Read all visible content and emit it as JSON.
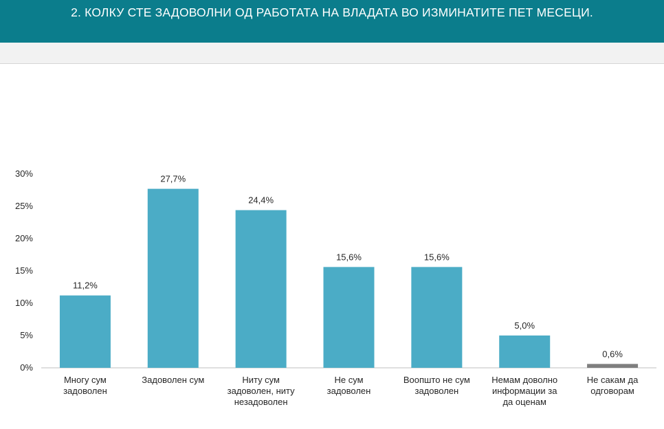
{
  "header": {
    "title": "2. КОЛКУ СТЕ ЗАДОВОЛНИ ОД РАБОТАТА НА ВЛАДАТА ВО ИЗМИНАТИТЕ ПЕТ МЕСЕЦИ."
  },
  "colors": {
    "header_bg": "#0b7d8c",
    "bar": "#4bacc6",
    "bar_refuse": "#7f7f7f"
  },
  "chart_data": {
    "type": "bar",
    "title": "",
    "xlabel": "",
    "ylabel": "",
    "ylim": [
      0,
      30
    ],
    "yticks": [
      "0%",
      "5%",
      "10%",
      "15%",
      "20%",
      "25%",
      "30%"
    ],
    "grid": false,
    "legend": "none",
    "categories": [
      [
        "Многу сум",
        "задоволен"
      ],
      [
        "Задоволен сум"
      ],
      [
        "Ниту сум",
        "задоволен, ниту",
        "незадоволен"
      ],
      [
        "Не сум",
        "задоволен"
      ],
      [
        "Воопшто не сум",
        "задоволен"
      ],
      [
        "Немам доволно",
        "информации за",
        "да оценам"
      ],
      [
        "Не сакам да",
        "одговорам"
      ]
    ],
    "values": [
      11.2,
      27.7,
      24.4,
      15.6,
      15.6,
      5.0,
      0.6
    ],
    "data_labels": [
      "11,2%",
      "27,7%",
      "24,4%",
      "15,6%",
      "15,6%",
      "5,0%",
      "0,6%"
    ]
  }
}
